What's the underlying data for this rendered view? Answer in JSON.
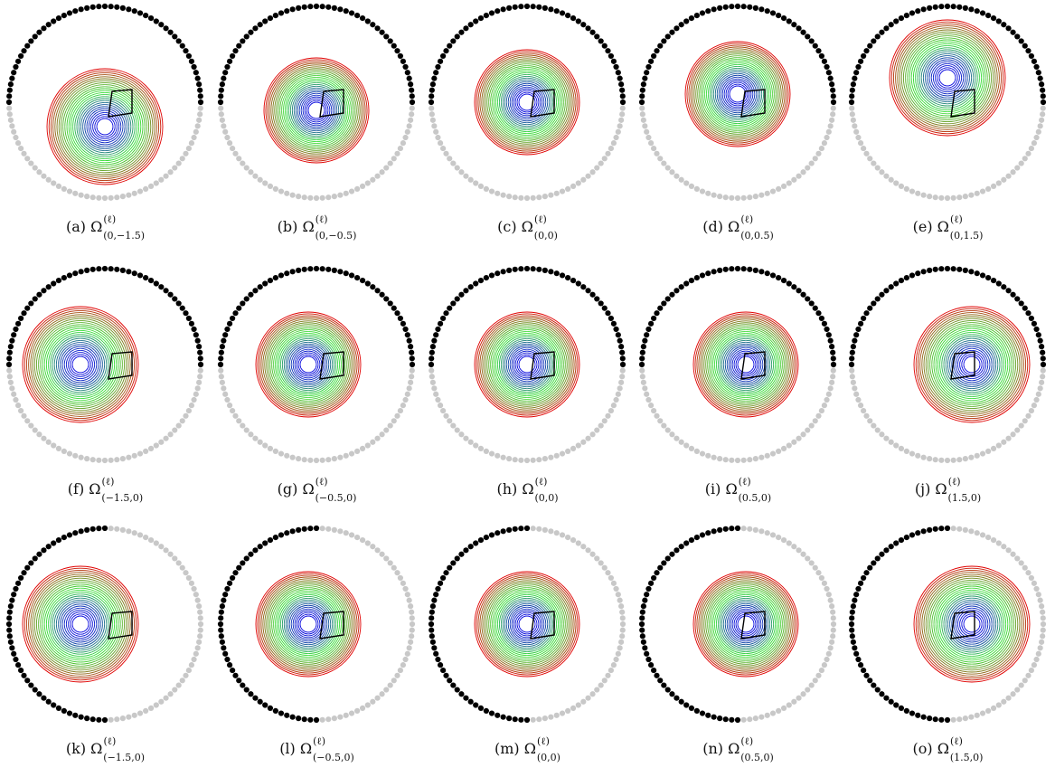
{
  "colors": {
    "active_dots": "#000000",
    "inactive_dots": "#c8c8c8",
    "outer_rings": "#e00000",
    "middle_rings": "#33dd33",
    "inner_rings": "#0000dd",
    "quad": "#000000",
    "background": "#ffffff"
  },
  "rows": [
    {
      "active_arc": "top",
      "panels": [
        {
          "label": "(a)",
          "sub": "(0,−1.5)",
          "cx": 0.0,
          "cy": -1.5
        },
        {
          "label": "(b)",
          "sub": "(0,−0.5)",
          "cx": 0.0,
          "cy": -0.5
        },
        {
          "label": "(c)",
          "sub": "(0,0)",
          "cx": 0.0,
          "cy": 0.0
        },
        {
          "label": "(d)",
          "sub": "(0,0.5)",
          "cx": 0.0,
          "cy": 0.5
        },
        {
          "label": "(e)",
          "sub": "(0,1.5)",
          "cx": 0.0,
          "cy": 1.5
        }
      ]
    },
    {
      "active_arc": "top",
      "panels": [
        {
          "label": "(f)",
          "sub": "(−1.5,0)",
          "cx": -1.5,
          "cy": 0.0
        },
        {
          "label": "(g)",
          "sub": "(−0.5,0)",
          "cx": -0.5,
          "cy": 0.0
        },
        {
          "label": "(h)",
          "sub": "(0,0)",
          "cx": 0.0,
          "cy": 0.0
        },
        {
          "label": "(i)",
          "sub": "(0.5,0)",
          "cx": 0.5,
          "cy": 0.0
        },
        {
          "label": "(j)",
          "sub": "(1.5,0)",
          "cx": 1.5,
          "cy": 0.0
        }
      ]
    },
    {
      "active_arc": "left",
      "panels": [
        {
          "label": "(k)",
          "sub": "(−1.5,0)",
          "cx": -1.5,
          "cy": 0.0
        },
        {
          "label": "(l)",
          "sub": "(−0.5,0)",
          "cx": -0.5,
          "cy": 0.0
        },
        {
          "label": "(m)",
          "sub": "(0,0)",
          "cx": 0.0,
          "cy": 0.0
        },
        {
          "label": "(n)",
          "sub": "(0.5,0)",
          "cx": 0.5,
          "cy": 0.0
        },
        {
          "label": "(o)",
          "sub": "(1.5,0)",
          "cx": 1.5,
          "cy": 0.0
        }
      ]
    }
  ],
  "caption_symbol": "Ω",
  "caption_superscript": "(ℓ)"
}
